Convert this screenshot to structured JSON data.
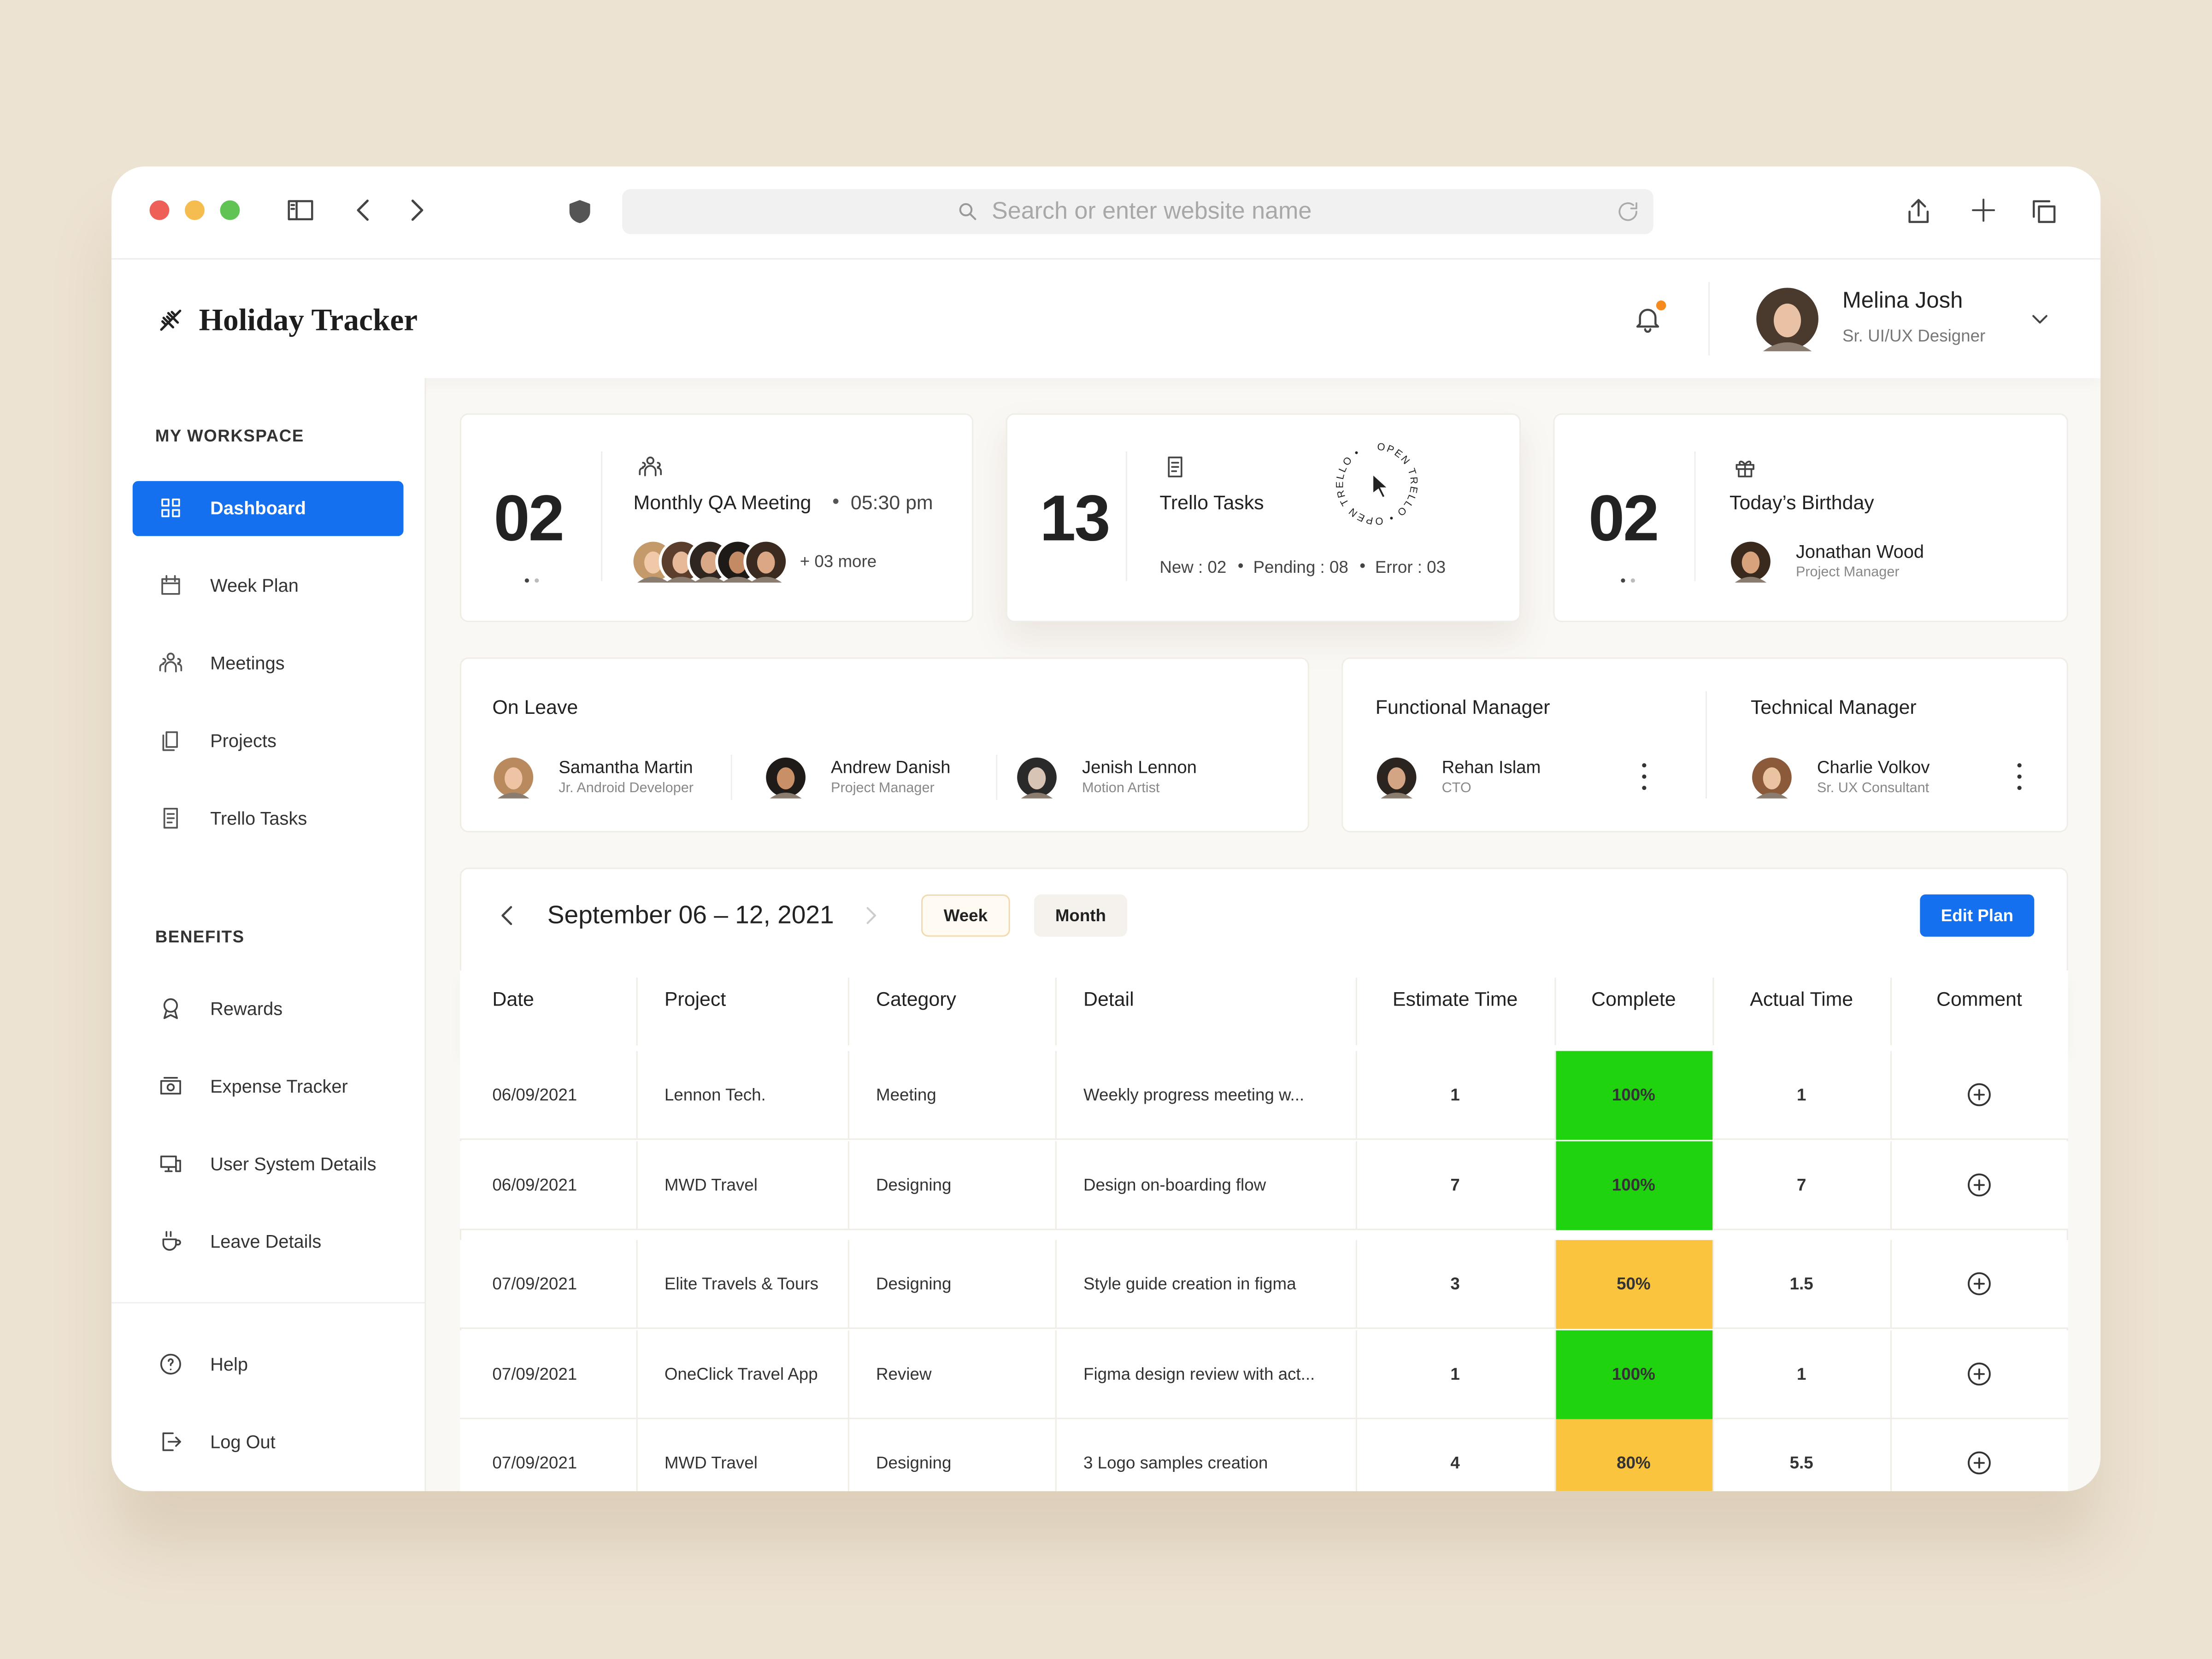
{
  "browser": {
    "search_placeholder": "Search or enter website name"
  },
  "header": {
    "app_name": "Holiday Tracker",
    "user_name": "Melina Josh",
    "user_role": "Sr. UI/UX Designer"
  },
  "sidebar": {
    "workspace_title": "MY WORKSPACE",
    "workspace_items": [
      "Dashboard",
      "Week Plan",
      "Meetings",
      "Projects",
      "Trello Tasks"
    ],
    "benefits_title": "BENEFITS",
    "benefits_items": [
      "Rewards",
      "Expense Tracker",
      "User System Details",
      "Leave Details"
    ],
    "footer_items": [
      "Help",
      "Log Out"
    ]
  },
  "cards": {
    "meeting": {
      "count": "02",
      "title": "Monthly QA Meeting",
      "time": "05:30 pm",
      "more": "+ 03 more"
    },
    "trello": {
      "count": "13",
      "title": "Trello Tasks",
      "stats": [
        "New : 02",
        "Pending : 08",
        "Error : 03"
      ],
      "badge": "OPEN TRELLO • OPEN TRELLO •"
    },
    "birthday": {
      "count": "02",
      "title": "Today’s Birthday",
      "name": "Jonathan Wood",
      "role": "Project Manager"
    }
  },
  "on_leave": {
    "title": "On Leave",
    "people": [
      {
        "name": "Samantha Martin",
        "role": "Jr. Android Developer"
      },
      {
        "name": "Andrew Danish",
        "role": "Project Manager"
      },
      {
        "name": "Jenish Lennon",
        "role": "Motion Artist"
      }
    ]
  },
  "managers": [
    {
      "title": "Functional Manager",
      "name": "Rehan Islam",
      "role": "CTO"
    },
    {
      "title": "Technical Manager",
      "name": "Charlie Volkov",
      "role": "Sr. UX Consultant"
    }
  ],
  "plan": {
    "range": "September 06 – 12, 2021",
    "tabs": [
      "Week",
      "Month"
    ],
    "button": "Edit Plan",
    "columns": [
      "Date",
      "Project",
      "Category",
      "Detail",
      "Estimate Time",
      "Complete",
      "Actual Time",
      "Comment"
    ],
    "rows": [
      {
        "date": "06/09/2021",
        "project": "Lennon Tech.",
        "category": "Meeting",
        "detail": "Weekly progress meeting w...",
        "estimate": 1,
        "complete": "100%",
        "actual": 1,
        "color": "#1fd40f"
      },
      {
        "date": "06/09/2021",
        "project": "MWD Travel",
        "category": "Designing",
        "detail": "Design on-boarding flow",
        "estimate": 7,
        "complete": "100%",
        "actual": 7,
        "color": "#1fd40f"
      },
      {
        "date": "07/09/2021",
        "project": "Elite Travels & Tours",
        "category": "Designing",
        "detail": "Style guide creation in figma",
        "estimate": 3,
        "complete": "50%",
        "actual": 1.5,
        "color": "#fbc43f"
      },
      {
        "date": "07/09/2021",
        "project": "OneClick Travel App",
        "category": "Review",
        "detail": "Figma design review with act...",
        "estimate": 1,
        "complete": "100%",
        "actual": 1,
        "color": "#1fd40f"
      },
      {
        "date": "07/09/2021",
        "project": "MWD Travel",
        "category": "Designing",
        "detail": "3 Logo samples creation",
        "estimate": 4,
        "complete": "80%",
        "actual": 5.5,
        "color": "#fbc43f"
      }
    ]
  }
}
